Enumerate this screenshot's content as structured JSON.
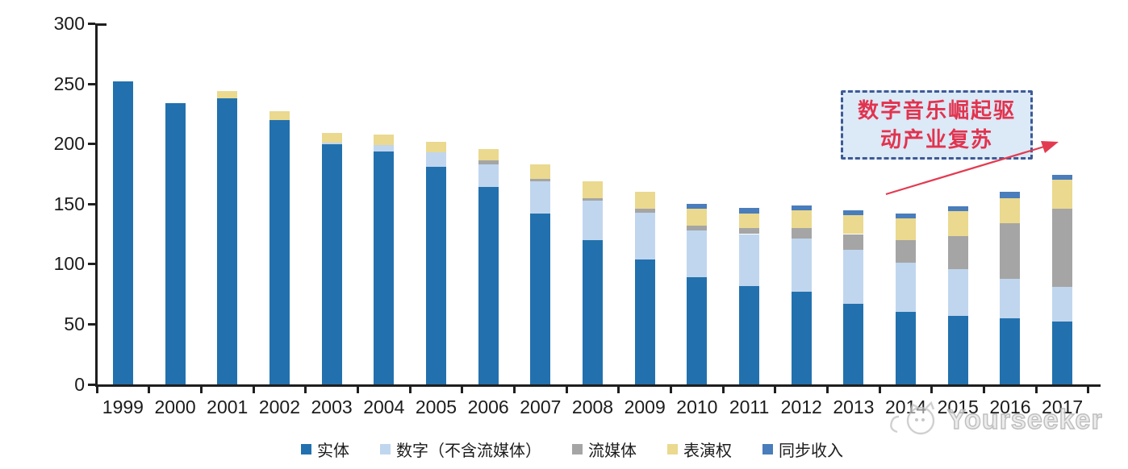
{
  "chart_data": {
    "type": "bar",
    "stacked": true,
    "title": "",
    "xlabel": "",
    "ylabel": "",
    "categories": [
      "1999",
      "2000",
      "2001",
      "2002",
      "2003",
      "2004",
      "2005",
      "2006",
      "2007",
      "2008",
      "2009",
      "2010",
      "2011",
      "2012",
      "2013",
      "2014",
      "2015",
      "2016",
      "2017"
    ],
    "series": [
      {
        "key": "physical",
        "name": "实体",
        "color": "#2271ae",
        "values": [
          252,
          234,
          238,
          220,
          200,
          194,
          181,
          164,
          142,
          120,
          104,
          89,
          82,
          77,
          67,
          60,
          57,
          55,
          52
        ]
      },
      {
        "key": "digital",
        "name": "数字（不含流媒体）",
        "color": "#c0d6ee",
        "values": [
          0,
          0,
          0,
          0,
          1,
          5,
          12,
          19,
          27,
          33,
          39,
          39,
          43,
          44,
          45,
          41,
          39,
          33,
          29
        ]
      },
      {
        "key": "streaming",
        "name": "流媒体",
        "color": "#a5a5a5",
        "values": [
          0,
          0,
          0,
          0,
          0,
          0,
          0,
          3,
          2,
          2,
          3,
          4,
          5,
          9,
          13,
          19,
          27,
          46,
          65
        ]
      },
      {
        "key": "performance",
        "name": "表演权",
        "color": "#ead98f",
        "values": [
          0,
          0,
          6,
          7,
          8,
          9,
          9,
          10,
          12,
          14,
          14,
          14,
          12,
          15,
          16,
          18,
          21,
          21,
          24
        ]
      },
      {
        "key": "sync",
        "name": "同步收入",
        "color": "#4a7dbb",
        "values": [
          0,
          0,
          0,
          0,
          0,
          0,
          0,
          0,
          0,
          0,
          0,
          4,
          5,
          4,
          4,
          4,
          4,
          5,
          4
        ]
      }
    ],
    "totals": [
      252,
      234,
      244,
      227,
      209,
      208,
      202,
      196,
      183,
      169,
      160,
      150,
      147,
      149,
      145,
      142,
      148,
      160,
      174
    ],
    "ylim": [
      0,
      300
    ],
    "yticks": [
      "0",
      "50",
      "100",
      "150",
      "200",
      "250",
      "300"
    ],
    "grid": false,
    "legend_position": "bottom"
  },
  "annotation": {
    "line1": "数字音乐崛起驱",
    "line2": "动产业复苏",
    "text_color": "#e2334e",
    "box_fill": "#dce9f7",
    "box_border": "#3d5a96",
    "arrow_color": "#e23b50"
  },
  "watermark": {
    "text": "Yourseeker",
    "icon": "cat-logo-icon",
    "color": "#b9b9b9"
  }
}
